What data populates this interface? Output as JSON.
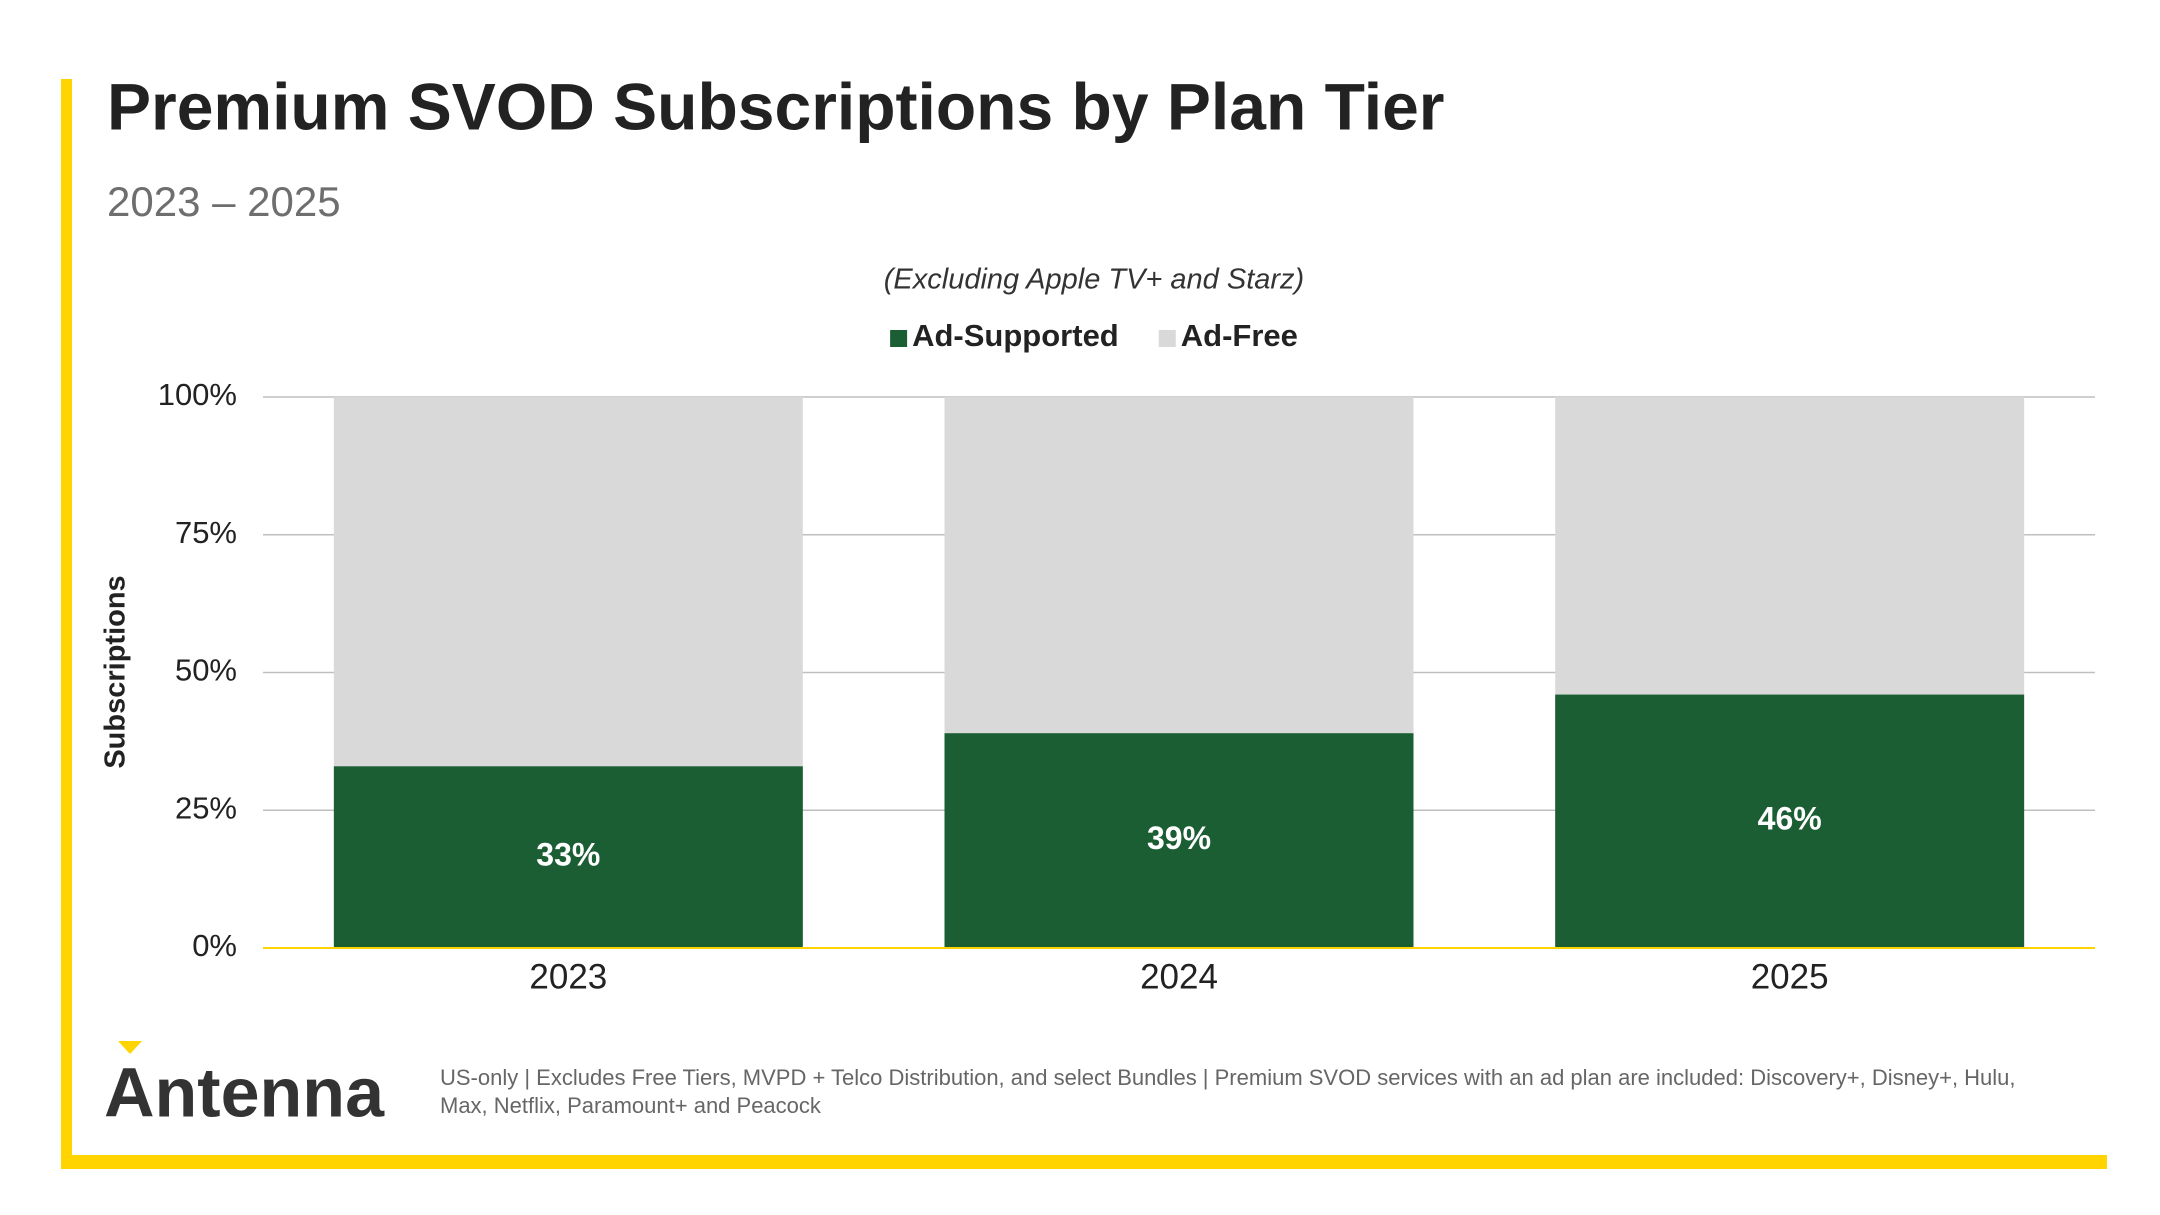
{
  "chart_data": {
    "type": "stacked_bar",
    "title": "Premium SVOD Subscriptions by Plan Tier",
    "subtitle": "2023 – 2025",
    "annotation": "(Excluding Apple TV+ and Starz)",
    "y_label": "Subscriptions",
    "categories": [
      "2023",
      "2024",
      "2025"
    ],
    "series": [
      {
        "name": "Ad-Supported",
        "color": "#1b5e34",
        "values": [
          33,
          39,
          46
        ],
        "value_labels": [
          "33%",
          "39%",
          "46%"
        ]
      },
      {
        "name": "Ad-Free",
        "color": "#d9d9d9",
        "values": [
          67,
          61,
          54
        ]
      }
    ],
    "ylim": [
      0,
      100
    ],
    "yticks": [
      {
        "value": 0,
        "label": "0%"
      },
      {
        "value": 25,
        "label": "25%"
      },
      {
        "value": 50,
        "label": "50%"
      },
      {
        "value": 75,
        "label": "75%"
      },
      {
        "value": 100,
        "label": "100%"
      }
    ],
    "grid": true,
    "legend": "top"
  },
  "footer": {
    "logo": "Antenna",
    "note": "US-only | Excludes Free Tiers, MVPD + Telco Distribution, and select Bundles | Premium SVOD services with an ad plan are included: Discovery+, Disney+, Hulu, Max, Netflix, Paramount+ and Peacock"
  }
}
